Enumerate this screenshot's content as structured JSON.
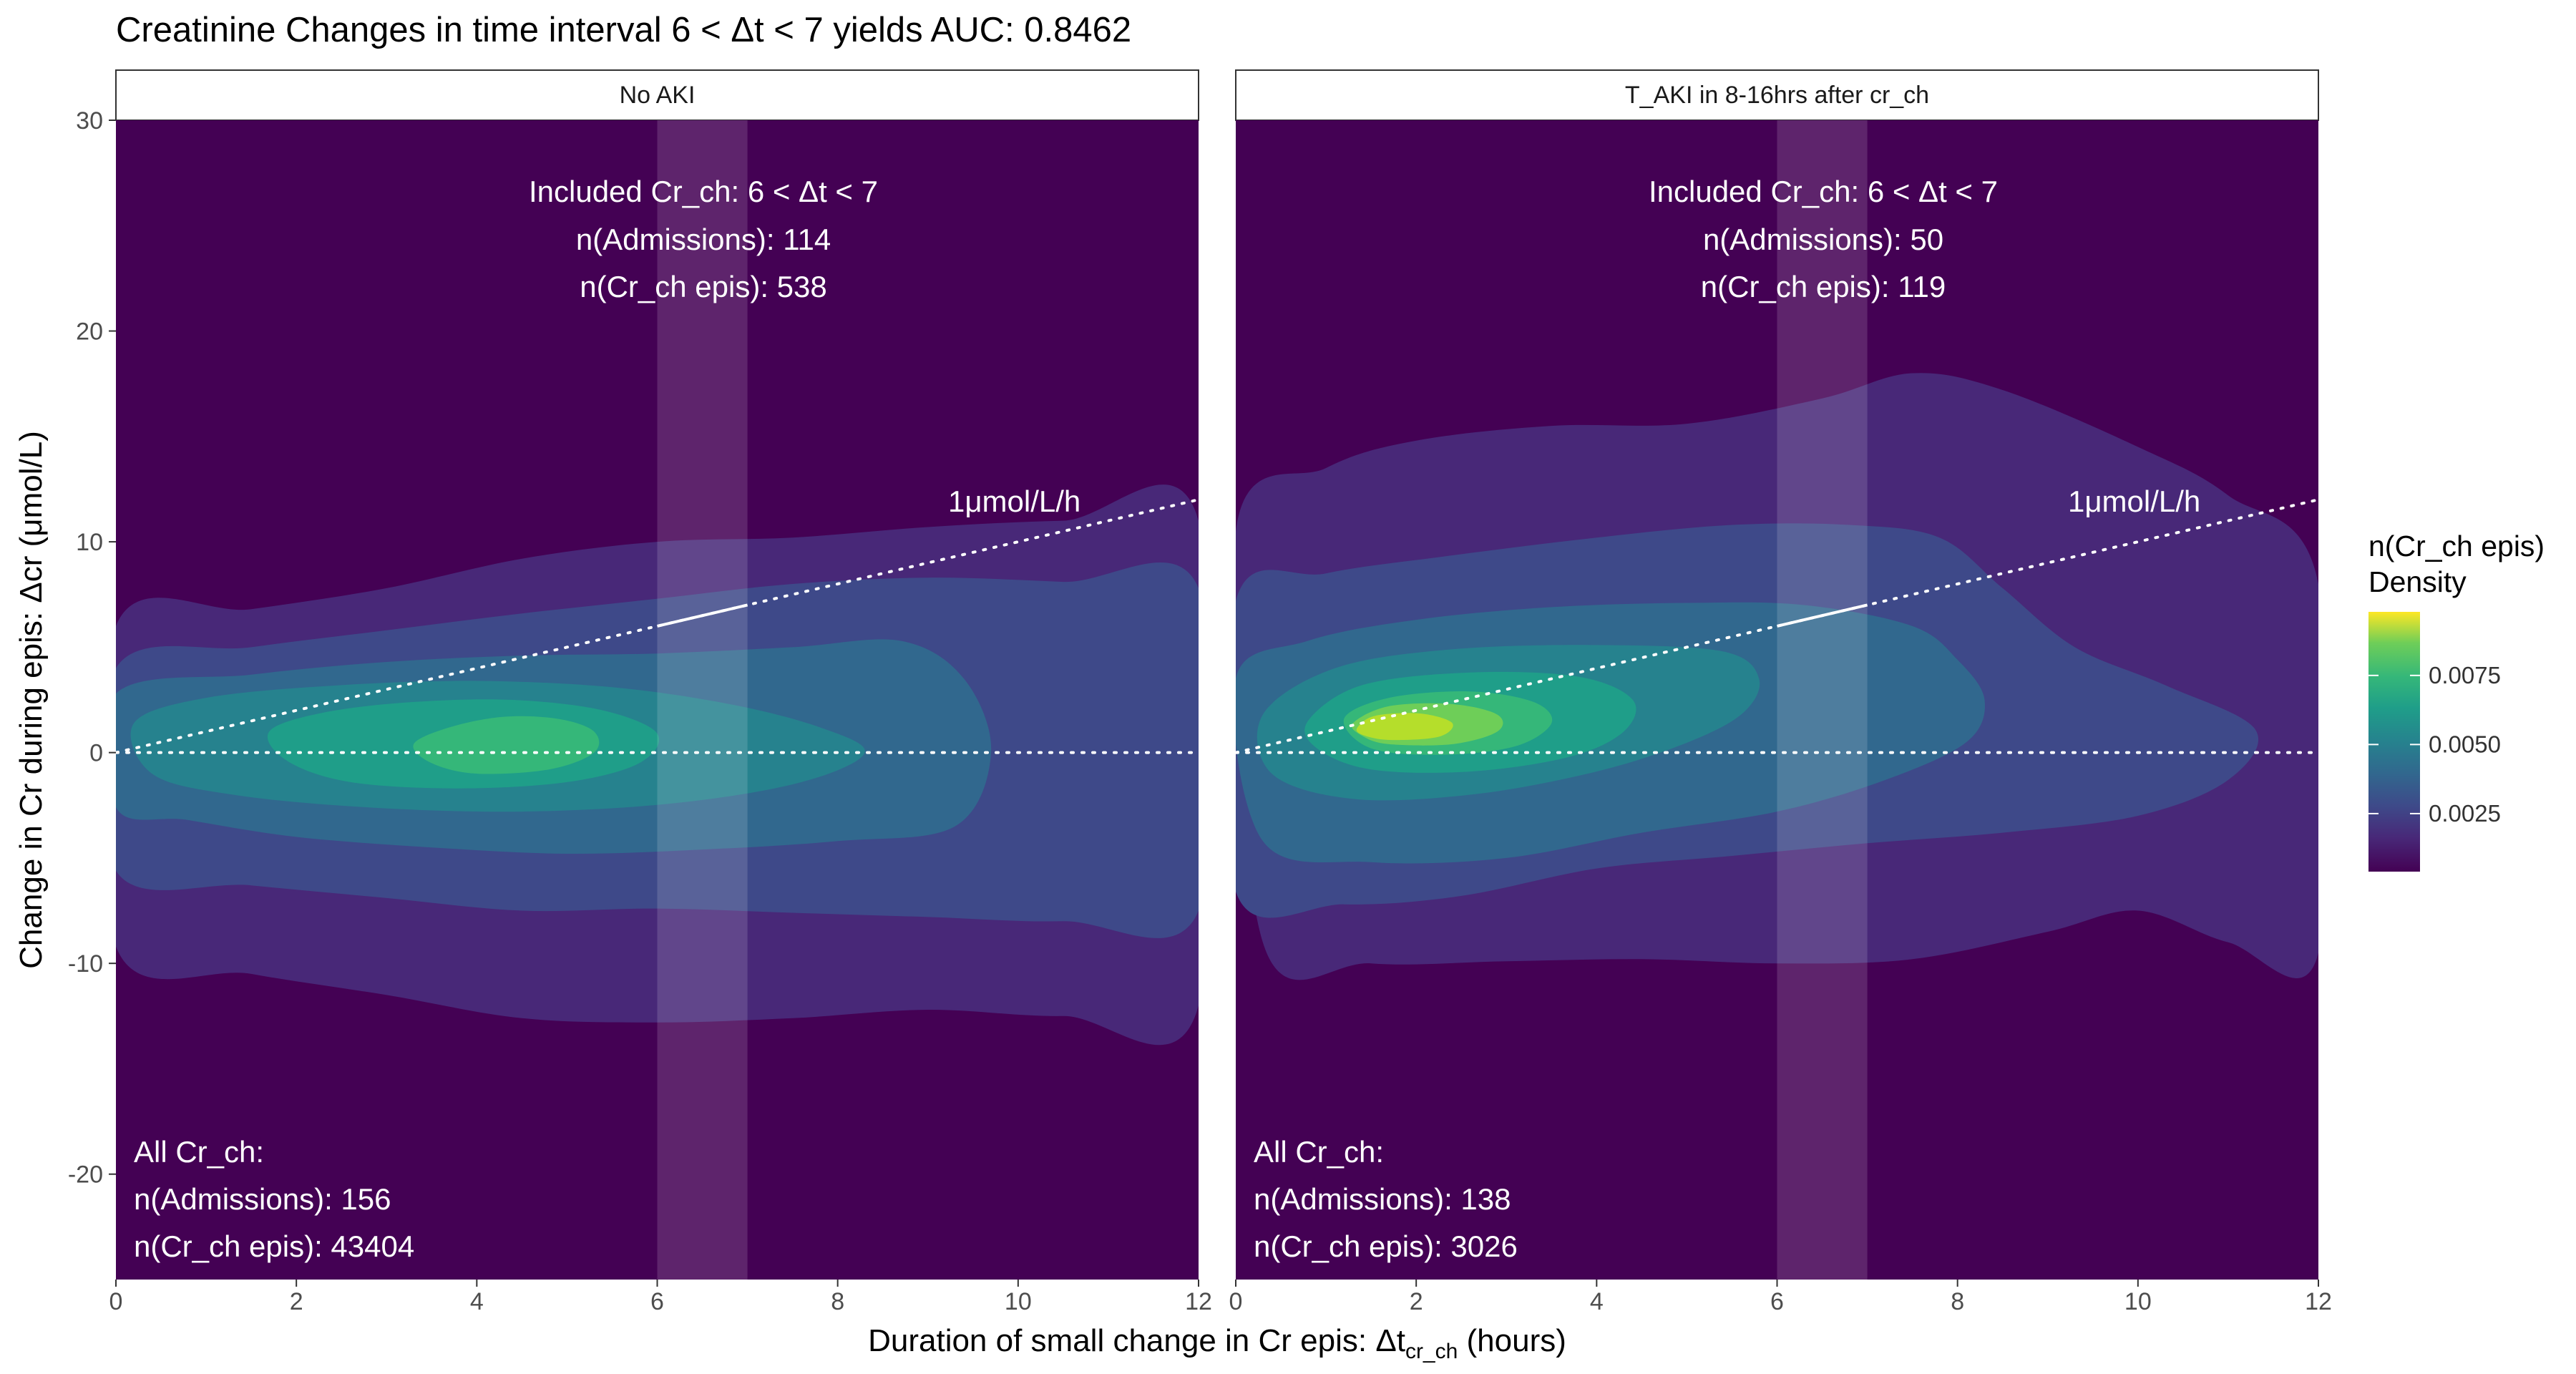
{
  "chart_data": {
    "type": "density2d",
    "title": "Creatinine Changes in time interval 6 < Δt < 7 yields AUC: 0.8462",
    "xlabel": {
      "prefix": "Duration of small change in Cr epis: Δt",
      "subscript": "cr_ch",
      "suffix": " (hours)"
    },
    "ylabel": "Change in Cr during epis: Δcr (μmol/L)",
    "xlim": [
      0,
      12
    ],
    "ylim": [
      -25,
      30
    ],
    "x_ticks": [
      0,
      2,
      4,
      6,
      8,
      10,
      12
    ],
    "y_ticks": [
      -20,
      -10,
      0,
      10,
      20,
      30
    ],
    "highlight_interval": [
      6,
      7
    ],
    "reference_lines": {
      "slope_line_label": "1μmol/L/h",
      "slope": 1,
      "zero_line": 0
    },
    "legend": {
      "title_line1": "n(Cr_ch epis)",
      "title_line2": "Density",
      "ticks": [
        0.0025,
        0.005,
        0.0075
      ],
      "tick_labels": [
        "0.0025",
        "0.0050",
        "0.0075"
      ],
      "range": [
        0.0004,
        0.0098
      ],
      "placement": "right"
    },
    "panels": [
      {
        "strip": "No AKI",
        "included_label": "Included Cr_ch: 6 < Δt < 7",
        "included_admissions": "n(Admissions): 114",
        "included_epis": "n(Cr_ch epis): 538",
        "all_label": "All Cr_ch:",
        "all_admissions": "n(Admissions): 156",
        "all_epis": "n(Cr_ch epis): 43404",
        "peak": {
          "x": 4.0,
          "y": 0.4
        },
        "contours": [
          {
            "level": 0.0012,
            "points": [
              [
                0,
                6
              ],
              [
                1.5,
                6.8
              ],
              [
                3,
                7.8
              ],
              [
                4.5,
                9.2
              ],
              [
                6,
                10
              ],
              [
                7.5,
                10.2
              ],
              [
                9,
                10.7
              ],
              [
                10.5,
                11
              ],
              [
                12,
                11
              ],
              [
                12,
                -12
              ],
              [
                10.5,
                -12.5
              ],
              [
                9,
                -12.2
              ],
              [
                7.5,
                -12.6
              ],
              [
                6,
                -12.8
              ],
              [
                4.5,
                -12.6
              ],
              [
                3,
                -11.5
              ],
              [
                1.5,
                -10.5
              ],
              [
                0,
                -9.2
              ]
            ]
          },
          {
            "level": 0.0022,
            "points": [
              [
                0,
                4
              ],
              [
                1.5,
                5
              ],
              [
                3,
                5.8
              ],
              [
                4.5,
                6.6
              ],
              [
                6,
                7.3
              ],
              [
                7.5,
                8
              ],
              [
                9,
                8.3
              ],
              [
                10.5,
                8.1
              ],
              [
                12,
                7.8
              ],
              [
                12,
                -7.5
              ],
              [
                10.5,
                -8
              ],
              [
                9,
                -7.8
              ],
              [
                7.5,
                -7.6
              ],
              [
                6,
                -7.4
              ],
              [
                4.5,
                -7.5
              ],
              [
                3,
                -6.9
              ],
              [
                1.5,
                -6.3
              ],
              [
                0,
                -5.6
              ]
            ]
          },
          {
            "level": 0.0034,
            "points": [
              [
                0,
                2.8
              ],
              [
                1.5,
                3.7
              ],
              [
                3,
                4.3
              ],
              [
                4.5,
                4.6
              ],
              [
                6,
                4.7
              ],
              [
                7.5,
                5
              ],
              [
                8.7,
                5.3
              ],
              [
                9.4,
                3.5
              ],
              [
                9.7,
                0
              ],
              [
                9.3,
                -3.5
              ],
              [
                8,
                -4.2
              ],
              [
                6.5,
                -4.6
              ],
              [
                5,
                -4.8
              ],
              [
                3.5,
                -4.5
              ],
              [
                2,
                -4
              ],
              [
                0.8,
                -3.2
              ],
              [
                0,
                -2.6
              ]
            ]
          },
          {
            "level": 0.0046,
            "points": [
              [
                0.2,
                1.4
              ],
              [
                1,
                2.6
              ],
              [
                2.5,
                3.2
              ],
              [
                4,
                3.4
              ],
              [
                5.5,
                3.1
              ],
              [
                6.8,
                2.3
              ],
              [
                7.8,
                1.2
              ],
              [
                8.3,
                0
              ],
              [
                7.6,
                -1.4
              ],
              [
                6.2,
                -2.4
              ],
              [
                4.5,
                -2.8
              ],
              [
                2.8,
                -2.6
              ],
              [
                1.3,
                -2
              ],
              [
                0.4,
                -1
              ]
            ]
          },
          {
            "level": 0.0058,
            "points": [
              [
                1.7,
                1
              ],
              [
                2.3,
                1.9
              ],
              [
                3.3,
                2.4
              ],
              [
                4.4,
                2.5
              ],
              [
                5.4,
                2
              ],
              [
                6,
                0.9
              ],
              [
                5.8,
                -0.5
              ],
              [
                5,
                -1.4
              ],
              [
                3.8,
                -1.7
              ],
              [
                2.6,
                -1.4
              ],
              [
                1.9,
                -0.4
              ]
            ]
          },
          {
            "level": 0.007,
            "points": [
              [
                3.3,
                0.4
              ],
              [
                3.7,
                1.2
              ],
              [
                4.3,
                1.7
              ],
              [
                4.9,
                1.6
              ],
              [
                5.3,
                1
              ],
              [
                5.3,
                0
              ],
              [
                4.8,
                -0.8
              ],
              [
                4,
                -1
              ],
              [
                3.5,
                -0.5
              ]
            ]
          }
        ]
      },
      {
        "strip": "T_AKI in 8-16hrs after cr_ch",
        "included_label": "Included Cr_ch: 6 < Δt < 7",
        "included_admissions": "n(Admissions): 50",
        "included_epis": "n(Cr_ch epis): 119",
        "all_label": "All Cr_ch:",
        "all_admissions": "n(Admissions): 138",
        "all_epis": "n(Cr_ch epis): 3026",
        "peak": {
          "x": 1.8,
          "y": 1.1
        },
        "contours": [
          {
            "level": 0.0012,
            "points": [
              [
                0,
                10.5
              ],
              [
                1,
                13.5
              ],
              [
                2,
                14.8
              ],
              [
                3.5,
                15.5
              ],
              [
                5,
                15.6
              ],
              [
                6.5,
                16.8
              ],
              [
                7.5,
                18
              ],
              [
                8.5,
                17.2
              ],
              [
                10,
                14.5
              ],
              [
                11,
                12.2
              ],
              [
                12,
                8
              ],
              [
                12,
                -9.5
              ],
              [
                11,
                -9
              ],
              [
                10,
                -7.5
              ],
              [
                9,
                -8.5
              ],
              [
                7.5,
                -9.8
              ],
              [
                6,
                -10
              ],
              [
                4.5,
                -9.8
              ],
              [
                3,
                -9.9
              ],
              [
                1.5,
                -10
              ],
              [
                0.3,
                -9
              ]
            ]
          },
          {
            "level": 0.0022,
            "points": [
              [
                0,
                7.2
              ],
              [
                1,
                8.5
              ],
              [
                2.3,
                9.3
              ],
              [
                4,
                10.2
              ],
              [
                5.5,
                10.8
              ],
              [
                6.8,
                10.8
              ],
              [
                7.8,
                10.2
              ],
              [
                8.5,
                7.8
              ],
              [
                9.3,
                5
              ],
              [
                10.3,
                3.2
              ],
              [
                11.3,
                1.1
              ],
              [
                11,
                -1.3
              ],
              [
                10,
                -3
              ],
              [
                8.5,
                -3.8
              ],
              [
                7,
                -4.3
              ],
              [
                5.5,
                -4.9
              ],
              [
                4,
                -5.5
              ],
              [
                2.5,
                -6.8
              ],
              [
                1.2,
                -7.2
              ],
              [
                0,
                -6.6
              ]
            ]
          },
          {
            "level": 0.0034,
            "points": [
              [
                0,
                3.5
              ],
              [
                0.8,
                5.3
              ],
              [
                2,
                6.3
              ],
              [
                3.5,
                6.9
              ],
              [
                5,
                7.1
              ],
              [
                6.3,
                7
              ],
              [
                7.5,
                6
              ],
              [
                8,
                4.4
              ],
              [
                8.3,
                2.5
              ],
              [
                8.1,
                0.5
              ],
              [
                7.2,
                -1.3
              ],
              [
                6,
                -2.8
              ],
              [
                4.5,
                -3.8
              ],
              [
                3,
                -5
              ],
              [
                1.5,
                -5.2
              ],
              [
                0.3,
                -4.2
              ]
            ]
          },
          {
            "level": 0.0046,
            "points": [
              [
                0.3,
                1.8
              ],
              [
                1.1,
                4
              ],
              [
                2.4,
                4.9
              ],
              [
                4,
                5.1
              ],
              [
                5.4,
                4.8
              ],
              [
                5.8,
                3.5
              ],
              [
                5.6,
                1.8
              ],
              [
                4.9,
                0.3
              ],
              [
                3.9,
                -1
              ],
              [
                2.6,
                -2
              ],
              [
                1.3,
                -2.2
              ],
              [
                0.4,
                -1
              ]
            ]
          },
          {
            "level": 0.0058,
            "points": [
              [
                0.8,
                1.5
              ],
              [
                1.4,
                3.2
              ],
              [
                2.6,
                3.8
              ],
              [
                3.8,
                3.6
              ],
              [
                4.4,
                2.5
              ],
              [
                4.3,
                1
              ],
              [
                3.7,
                -0.2
              ],
              [
                2.6,
                -0.9
              ],
              [
                1.5,
                -0.8
              ],
              [
                0.9,
                0.2
              ]
            ]
          },
          {
            "level": 0.007,
            "points": [
              [
                1.2,
                1.6
              ],
              [
                1.7,
                2.6
              ],
              [
                2.6,
                2.9
              ],
              [
                3.3,
                2.4
              ],
              [
                3.5,
                1.4
              ],
              [
                3.1,
                0.3
              ],
              [
                2.3,
                -0.1
              ],
              [
                1.5,
                0.2
              ]
            ]
          },
          {
            "level": 0.0082,
            "points": [
              [
                1.3,
                1.4
              ],
              [
                1.7,
                2.2
              ],
              [
                2.4,
                2.3
              ],
              [
                2.9,
                1.8
              ],
              [
                2.9,
                1
              ],
              [
                2.4,
                0.4
              ],
              [
                1.7,
                0.4
              ],
              [
                1.4,
                0.8
              ]
            ]
          },
          {
            "level": 0.0092,
            "points": [
              [
                1.35,
                1.2
              ],
              [
                1.55,
                1.75
              ],
              [
                2.05,
                1.85
              ],
              [
                2.4,
                1.4
              ],
              [
                2.25,
                0.75
              ],
              [
                1.7,
                0.6
              ],
              [
                1.4,
                0.85
              ]
            ]
          }
        ]
      }
    ]
  }
}
